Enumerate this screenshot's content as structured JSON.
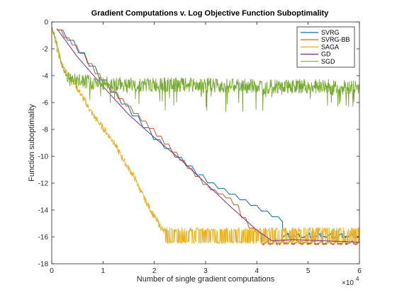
{
  "chart_data": {
    "type": "line",
    "title": "Gradient Computations v. Log Objective Function Suboptimality",
    "xlabel": "Number of single gradient computations",
    "ylabel": "Function suboptimality",
    "x_multiplier_label": "×10",
    "x_multiplier_exp": "4",
    "xlim": [
      0,
      60000
    ],
    "ylim": [
      -18,
      0
    ],
    "x_ticks": [
      0,
      10000,
      20000,
      30000,
      40000,
      50000,
      60000
    ],
    "x_tick_labels": [
      "0",
      "1",
      "2",
      "3",
      "4",
      "5",
      "6"
    ],
    "y_ticks": [
      0,
      -2,
      -4,
      -6,
      -8,
      -10,
      -12,
      -14,
      -16,
      -18
    ],
    "y_tick_labels": [
      "0",
      "-2",
      "-4",
      "-6",
      "-8",
      "-10",
      "-12",
      "-14",
      "-16",
      "-18"
    ],
    "legend_position": "top-right",
    "grid": false,
    "series": [
      {
        "name": "SVRG",
        "color": "#0072BD",
        "style": "staircase",
        "points": [
          [
            1000,
            -0.6
          ],
          [
            4000,
            -1.7
          ],
          [
            10000,
            -4.6
          ],
          [
            20000,
            -8.8
          ],
          [
            30000,
            -11.9
          ],
          [
            40000,
            -13.9
          ],
          [
            45000,
            -14.9
          ],
          [
            50000,
            -15.8
          ],
          [
            60000,
            -15.9
          ]
        ]
      },
      {
        "name": "SVRG-BB",
        "color": "#D95319",
        "style": "staircase",
        "points": [
          [
            1000,
            -0.6
          ],
          [
            5000,
            -2.1
          ],
          [
            10000,
            -4.6
          ],
          [
            20000,
            -8.3
          ],
          [
            25000,
            -10.3
          ],
          [
            30000,
            -12.3
          ],
          [
            35000,
            -13.3
          ],
          [
            38000,
            -15.2
          ],
          [
            41000,
            -16.0
          ],
          [
            43000,
            -16.2
          ],
          [
            60000,
            -16.4
          ]
        ]
      },
      {
        "name": "SAGA",
        "color": "#EDB120",
        "style": "noisy",
        "points": [
          [
            0,
            -0.5
          ],
          [
            1000,
            -2.0
          ],
          [
            2000,
            -3.2
          ],
          [
            3000,
            -3.8
          ],
          [
            4000,
            -4.3
          ],
          [
            6000,
            -5.6
          ],
          [
            8000,
            -6.9
          ],
          [
            10000,
            -7.9
          ],
          [
            12000,
            -8.9
          ],
          [
            14000,
            -10.3
          ],
          [
            16000,
            -11.5
          ],
          [
            18000,
            -13.1
          ],
          [
            20000,
            -14.5
          ],
          [
            22000,
            -15.7
          ],
          [
            60000,
            -16.2
          ]
        ]
      },
      {
        "name": "GD",
        "color": "#7E2F8E",
        "style": "smooth",
        "points": [
          [
            1000,
            -0.5
          ],
          [
            5000,
            -2.6
          ],
          [
            10000,
            -4.8
          ],
          [
            15000,
            -6.9
          ],
          [
            20000,
            -8.6
          ],
          [
            25000,
            -10.2
          ],
          [
            30000,
            -12.0
          ],
          [
            35000,
            -13.8
          ],
          [
            40000,
            -15.5
          ],
          [
            43000,
            -16.3
          ],
          [
            47000,
            -16.2
          ],
          [
            60000,
            -16.4
          ]
        ]
      },
      {
        "name": "SGD",
        "color": "#77AC30",
        "style": "noisy",
        "points": [
          [
            0,
            -0.4
          ],
          [
            1000,
            -1.5
          ],
          [
            1800,
            -3.0
          ],
          [
            2500,
            -3.8
          ],
          [
            3500,
            -4.3
          ],
          [
            5000,
            -4.4
          ],
          [
            10000,
            -4.6
          ],
          [
            20000,
            -4.7
          ],
          [
            30000,
            -4.7
          ],
          [
            40000,
            -4.8
          ],
          [
            50000,
            -4.8
          ],
          [
            60000,
            -4.9
          ]
        ]
      }
    ]
  }
}
